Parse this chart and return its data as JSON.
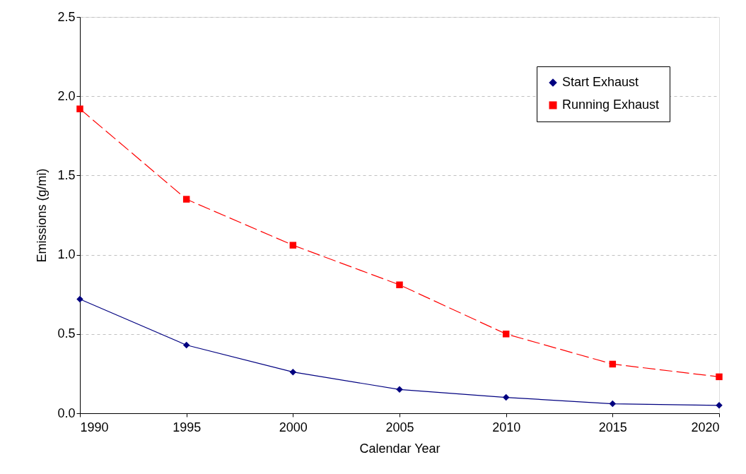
{
  "chart_data": {
    "type": "line",
    "xlabel": "Calendar Year",
    "ylabel": "Emissions (g/mi)",
    "x": [
      1990,
      1995,
      2000,
      2005,
      2010,
      2015,
      2020
    ],
    "series": [
      {
        "name": "Start Exhaust",
        "color": "#000080",
        "marker": "diamond",
        "line_style": "solid",
        "values": [
          0.72,
          0.43,
          0.26,
          0.15,
          0.1,
          0.06,
          0.05
        ]
      },
      {
        "name": "Running Exhaust",
        "color": "#ff0000",
        "marker": "square",
        "line_style": "dashed",
        "values": [
          1.92,
          1.35,
          1.06,
          0.81,
          0.5,
          0.31,
          0.23
        ]
      }
    ],
    "xlim": [
      1990,
      2020
    ],
    "xticks": [
      1990,
      1995,
      2000,
      2005,
      2010,
      2015,
      2020
    ],
    "ylim": [
      0,
      2.5
    ],
    "yticks": [
      {
        "value": 0,
        "label": "0.0"
      },
      {
        "value": 0.5,
        "label": "0.5"
      },
      {
        "value": 1,
        "label": "1.0"
      },
      {
        "value": 1.5,
        "label": "1.5"
      },
      {
        "value": 2,
        "label": "2.0"
      },
      {
        "value": 2.5,
        "label": "2.5"
      }
    ],
    "grid": "y",
    "legend": "top right"
  }
}
